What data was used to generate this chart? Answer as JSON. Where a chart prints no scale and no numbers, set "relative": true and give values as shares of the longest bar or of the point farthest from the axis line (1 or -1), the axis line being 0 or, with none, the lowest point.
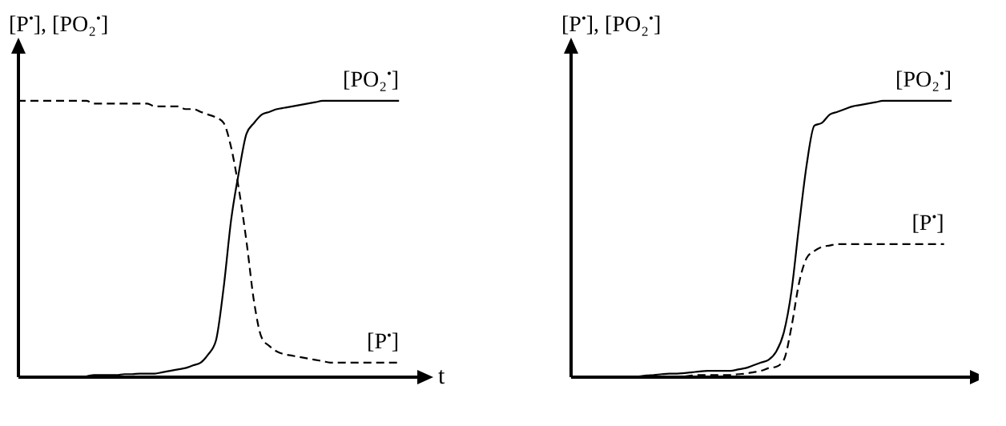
{
  "chart_data": [
    {
      "type": "line",
      "relative": true,
      "tick_labels": false,
      "ylabel": "[P$^{•}$], [PO₂$^{•}$]",
      "xlabel": "t",
      "categories": [
        null,
        null,
        null,
        null,
        null,
        null,
        null,
        null,
        null,
        null,
        null,
        null,
        null,
        null,
        null,
        null,
        null,
        null,
        null,
        null,
        null,
        null,
        null,
        null,
        null,
        null,
        null,
        null,
        null,
        null,
        null,
        null,
        null,
        null,
        null,
        null,
        null,
        null,
        null,
        null,
        null,
        null,
        null,
        null,
        null,
        null,
        null,
        null,
        null,
        null,
        null
      ],
      "series": [
        {
          "name": "[PO₂$^{•}$]",
          "color": "#000000",
          "line_style": "solid",
          "values": [
            null,
            null,
            null,
            null,
            null,
            null,
            null,
            null,
            null,
            0,
            0.005,
            0.005,
            0.005,
            0.005,
            0.008,
            0.008,
            0.01,
            0.01,
            0.01,
            0.015,
            0.02,
            0.025,
            0.03,
            0.04,
            0.05,
            0.08,
            0.13,
            0.32,
            0.57,
            0.74,
            0.88,
            0.92,
            0.95,
            0.96,
            0.97,
            0.975,
            0.98,
            0.985,
            0.99,
            0.995,
            1,
            1,
            1,
            1,
            1,
            1,
            1,
            1,
            1,
            1,
            1
          ]
        },
        {
          "name": "[P$^{•}$]",
          "color": "#000000",
          "line_style": "dashed",
          "values": [
            1,
            1,
            1,
            1,
            1,
            1,
            1,
            1,
            1,
            1,
            0.99,
            0.99,
            0.99,
            0.99,
            0.99,
            0.99,
            0.99,
            0.99,
            0.98,
            0.98,
            0.98,
            0.98,
            0.97,
            0.97,
            0.96,
            0.95,
            0.94,
            0.92,
            0.83,
            0.68,
            0.49,
            0.27,
            0.14,
            0.11,
            0.09,
            0.08,
            0.075,
            0.07,
            0.065,
            0.06,
            0.055,
            0.05,
            0.05,
            0.05,
            0.05,
            0.05,
            0.05,
            0.05,
            0.05,
            0.05,
            0.05
          ]
        }
      ]
    },
    {
      "type": "line",
      "relative": true,
      "tick_labels": false,
      "ylabel": "[P$^{•}$], [PO₂$^{•}$]",
      "categories": [
        null,
        null,
        null,
        null,
        null,
        null,
        null,
        null,
        null,
        null,
        null,
        null,
        null,
        null,
        null,
        null,
        null,
        null,
        null,
        null,
        null,
        null,
        null,
        null,
        null,
        null,
        null,
        null,
        null,
        null,
        null,
        null,
        null,
        null,
        null,
        null,
        null,
        null,
        null,
        null,
        null,
        null,
        null,
        null,
        null,
        null,
        null,
        null,
        null,
        null,
        null
      ],
      "series": [
        {
          "name": "[PO₂$^{•}$]",
          "color": "#000000",
          "line_style": "solid",
          "values": [
            null,
            null,
            null,
            null,
            null,
            null,
            null,
            null,
            null,
            0,
            0.003,
            0.005,
            0.008,
            0.01,
            0.01,
            0.012,
            0.015,
            0.018,
            0.02,
            0.02,
            0.02,
            0.02,
            0.025,
            0.03,
            0.04,
            0.05,
            0.06,
            0.09,
            0.16,
            0.31,
            0.55,
            0.77,
            0.91,
            0.92,
            0.95,
            0.96,
            0.97,
            0.98,
            0.985,
            0.99,
            0.995,
            1,
            1,
            1,
            1,
            1,
            1,
            1,
            1,
            1,
            1
          ]
        },
        {
          "name": "[P$^{•}$]",
          "color": "#000000",
          "line_style": "dashed",
          "values": [
            null,
            null,
            null,
            null,
            null,
            null,
            null,
            null,
            null,
            null,
            null,
            null,
            null,
            null,
            null,
            0,
            0.003,
            0.005,
            0.005,
            0.005,
            0.005,
            0.005,
            0.008,
            0.01,
            0.015,
            0.02,
            0.03,
            0.035,
            0.06,
            0.18,
            0.34,
            0.43,
            0.455,
            0.47,
            0.475,
            0.48,
            0.48,
            0.48,
            0.48,
            0.48,
            0.48,
            0.48,
            0.48,
            0.48,
            0.48,
            0.48,
            0.48,
            0.48,
            0.48,
            0.48,
            null
          ]
        }
      ]
    }
  ]
}
